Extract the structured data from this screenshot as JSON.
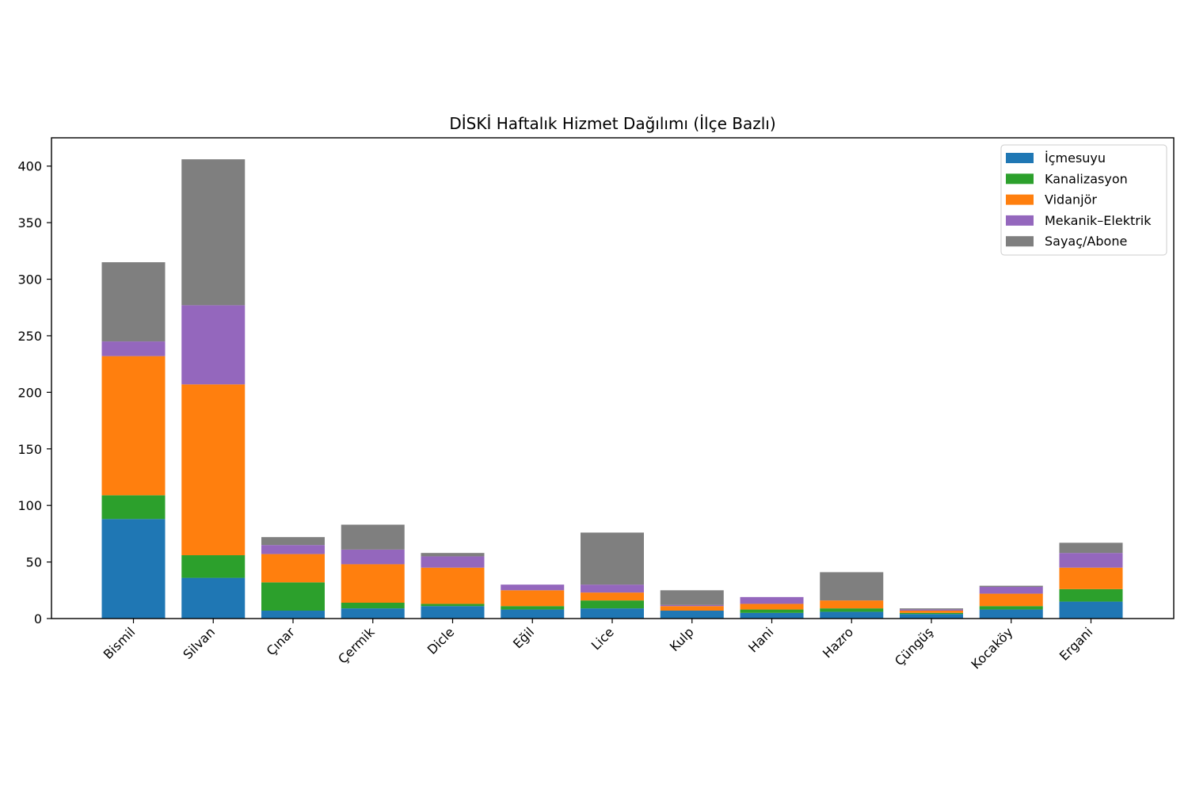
{
  "chart_data": {
    "type": "bar",
    "stacked": true,
    "title": "DİSKİ Haftalık Hizmet Dağılımı (İlçe Bazlı)",
    "xlabel": "",
    "ylabel": "",
    "ylim": [
      0,
      425
    ],
    "yticks": [
      0,
      50,
      100,
      150,
      200,
      250,
      300,
      350,
      400
    ],
    "grid": false,
    "legend_position": "top-right",
    "categories": [
      "Bismil",
      "Silvan",
      "Çınar",
      "Çermik",
      "Dicle",
      "Eğil",
      "Lice",
      "Kulp",
      "Hani",
      "Hazro",
      "Çüngüş",
      "Kocaköy",
      "Ergani"
    ],
    "series": [
      {
        "name": "İçmesuyu",
        "color": "#1f77b4",
        "values": [
          88,
          36,
          7,
          9,
          11,
          8,
          9,
          7,
          5,
          6,
          4,
          8,
          15
        ]
      },
      {
        "name": "Kanalizasyon",
        "color": "#2ca02c",
        "values": [
          21,
          20,
          25,
          5,
          2,
          3,
          7,
          0,
          3,
          3,
          1,
          3,
          11
        ]
      },
      {
        "name": "Vidanjör",
        "color": "#ff7f0e",
        "values": [
          123,
          151,
          25,
          34,
          32,
          14,
          7,
          4,
          5,
          7,
          2,
          11,
          19
        ]
      },
      {
        "name": "Mekanik–Elektrik",
        "color": "#9467bd",
        "values": [
          13,
          70,
          8,
          13,
          10,
          5,
          7,
          1,
          6,
          0,
          1,
          6,
          13
        ]
      },
      {
        "name": "Sayaç/Abone",
        "color": "#7f7f7f",
        "values": [
          70,
          129,
          7,
          22,
          3,
          0,
          46,
          13,
          0,
          25,
          1,
          1,
          9
        ]
      }
    ]
  }
}
